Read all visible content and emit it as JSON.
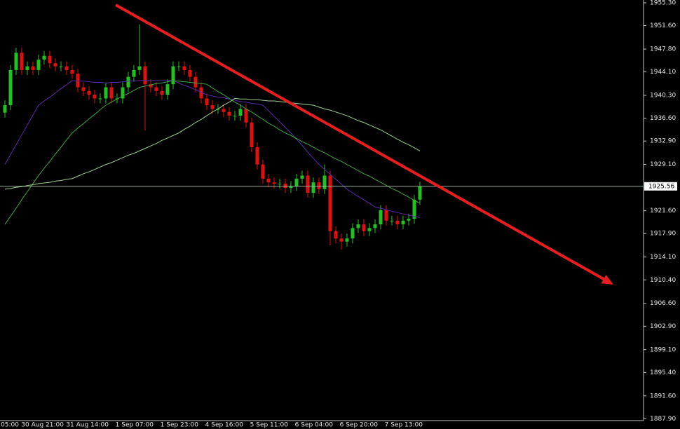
{
  "chart_data": {
    "type": "candlestick",
    "categories": [
      "05:00",
      null,
      null,
      null,
      null,
      null,
      null,
      null,
      "30 Aug 21:00",
      null,
      null,
      null,
      null,
      null,
      null,
      null,
      "31 Aug 14:00",
      null,
      null,
      null,
      null,
      null,
      null,
      null,
      "1 Sep 07:00",
      null,
      null,
      null,
      null,
      null,
      null,
      null,
      "1 Sep 23:00",
      null,
      null,
      null,
      null,
      null,
      null,
      null,
      "4 Sep 16:00",
      null,
      null,
      null,
      null,
      null,
      null,
      null,
      "5 Sep 11:00",
      null,
      null,
      null,
      null,
      null,
      null,
      null,
      "6 Sep 04:00",
      null,
      null,
      null,
      null,
      null,
      null,
      null,
      "6 Sep 20:00",
      null,
      null,
      null,
      null,
      null,
      null,
      null,
      "7 Sep 13:00",
      null,
      null
    ],
    "open": [
      1937.5,
      1938.7,
      1944.4,
      1947.2,
      1944.4,
      1945.0,
      1944.4,
      1946.1,
      1946.7,
      1945.5,
      1945.0,
      1945.0,
      1944.4,
      1943.8,
      1941.6,
      1941.0,
      1940.4,
      1939.8,
      1939.8,
      1941.6,
      1939.8,
      1939.8,
      1941.6,
      1943.3,
      1944.4,
      1945.0,
      1942.1,
      1941.6,
      1941.0,
      1940.4,
      1942.1,
      1945.0,
      1945.0,
      1944.4,
      1943.3,
      1941.6,
      1939.8,
      1938.7,
      1938.1,
      1938.1,
      1937.6,
      1937.0,
      1937.0,
      1938.1,
      1935.9,
      1931.9,
      1929.1,
      1926.8,
      1926.2,
      1926.0,
      1926.0,
      1925.3,
      1925.6,
      1926.8,
      1927.3,
      1924.5,
      1926.2,
      1925.1,
      1927.3,
      1918.3,
      1917.1,
      1916.6,
      1917.1,
      1918.8,
      1919.4,
      1918.3,
      1918.8,
      1919.4,
      1921.7,
      1920.0,
      1920.0,
      1919.4,
      1920.0,
      1920.3,
      1923.4
    ],
    "high": [
      1939.5,
      1945.2,
      1948.0,
      1948.0,
      1945.8,
      1945.8,
      1946.9,
      1947.5,
      1947.5,
      1946.3,
      1945.8,
      1945.8,
      1945.2,
      1944.6,
      1942.4,
      1941.8,
      1941.2,
      1940.6,
      1942.4,
      1942.4,
      1940.6,
      1942.4,
      1944.1,
      1945.2,
      1951.8,
      1945.8,
      1942.9,
      1942.4,
      1941.8,
      1942.9,
      1945.8,
      1945.8,
      1945.8,
      1945.2,
      1944.1,
      1942.4,
      1940.6,
      1939.5,
      1938.9,
      1938.9,
      1938.4,
      1937.8,
      1938.9,
      1938.9,
      1936.7,
      1932.7,
      1929.9,
      1927.6,
      1927.0,
      1926.8,
      1926.8,
      1926.4,
      1927.6,
      1928.1,
      1928.1,
      1927.0,
      1927.0,
      1929.1,
      1928.1,
      1919.1,
      1917.9,
      1917.9,
      1919.6,
      1920.2,
      1920.2,
      1919.6,
      1920.2,
      1922.5,
      1922.5,
      1920.8,
      1920.8,
      1920.8,
      1921.1,
      1924.2,
      1926.3
    ],
    "low": [
      1936.7,
      1937.9,
      1943.6,
      1943.6,
      1943.6,
      1943.6,
      1943.6,
      1945.3,
      1944.7,
      1944.2,
      1944.2,
      1943.6,
      1943.0,
      1940.8,
      1940.2,
      1939.6,
      1939.0,
      1939.0,
      1939.0,
      1939.0,
      1939.0,
      1939.0,
      1940.8,
      1942.5,
      1943.6,
      1934.6,
      1940.8,
      1940.2,
      1939.6,
      1939.6,
      1941.3,
      1944.2,
      1943.6,
      1942.5,
      1940.8,
      1939.0,
      1937.9,
      1937.3,
      1937.3,
      1936.8,
      1936.2,
      1936.2,
      1936.2,
      1935.1,
      1931.1,
      1928.3,
      1926.0,
      1925.4,
      1925.2,
      1925.2,
      1924.5,
      1924.5,
      1924.8,
      1926.0,
      1923.7,
      1923.7,
      1924.3,
      1924.3,
      1916.0,
      1916.3,
      1915.3,
      1915.8,
      1916.3,
      1918.0,
      1917.5,
      1917.5,
      1918.0,
      1918.6,
      1919.2,
      1919.2,
      1918.6,
      1918.6,
      1919.2,
      1919.5,
      1922.6
    ],
    "close": [
      1938.7,
      1944.4,
      1947.2,
      1944.4,
      1945.0,
      1944.4,
      1946.1,
      1946.7,
      1945.5,
      1945.0,
      1945.0,
      1944.4,
      1943.8,
      1941.6,
      1941.0,
      1940.4,
      1939.8,
      1939.8,
      1941.6,
      1939.8,
      1939.8,
      1941.6,
      1943.3,
      1944.4,
      1945.0,
      1942.1,
      1941.6,
      1941.0,
      1940.4,
      1942.1,
      1945.0,
      1945.0,
      1944.4,
      1943.3,
      1941.6,
      1939.8,
      1938.7,
      1938.1,
      1938.1,
      1937.6,
      1937.0,
      1937.0,
      1938.1,
      1935.9,
      1931.9,
      1929.1,
      1926.8,
      1926.2,
      1926.0,
      1926.0,
      1925.3,
      1925.6,
      1926.8,
      1927.3,
      1924.5,
      1926.2,
      1925.1,
      1927.3,
      1918.3,
      1917.1,
      1916.6,
      1917.1,
      1918.8,
      1919.4,
      1918.3,
      1918.8,
      1919.4,
      1921.7,
      1920.0,
      1920.0,
      1919.4,
      1920.0,
      1920.3,
      1923.4,
      1925.56
    ],
    "up_color": "#1fc21f",
    "down_color": "#e01010",
    "series": [
      {
        "color": "#5a2aa8",
        "values": [
          1929.1,
          1930.7,
          1932.3,
          1933.9,
          1935.5,
          1937.1,
          1938.7,
          1939.4,
          1940.0,
          1940.7,
          1941.4,
          1942.0,
          1942.7,
          1942.6,
          1942.6,
          1942.5,
          1942.4,
          1942.4,
          1942.3,
          1942.4,
          1942.4,
          1942.5,
          1942.6,
          1942.6,
          1942.7,
          1942.7,
          1942.7,
          1942.7,
          1942.7,
          1942.7,
          1942.7,
          1942.3,
          1941.9,
          1941.6,
          1941.2,
          1940.8,
          1940.4,
          1940.2,
          1940.0,
          1939.9,
          1939.7,
          1939.5,
          1939.3,
          1939.2,
          1939.0,
          1938.9,
          1938.7,
          1937.8,
          1936.9,
          1936.0,
          1935.1,
          1934.2,
          1933.2,
          1932.2,
          1931.1,
          1930.1,
          1929.1,
          1928.3,
          1927.5,
          1926.7,
          1925.9,
          1925.1,
          1924.5,
          1923.9,
          1923.4,
          1922.8,
          1922.2,
          1922.0,
          1921.8,
          1921.5,
          1921.3,
          1921.1,
          1920.9,
          1920.7,
          1920.5
        ]
      },
      {
        "color": "#3fa83f",
        "values": [
          1919.4,
          1920.7,
          1922.0,
          1923.4,
          1924.7,
          1926.0,
          1927.3,
          1928.5,
          1929.6,
          1930.8,
          1931.9,
          1933.1,
          1934.2,
          1935.0,
          1935.7,
          1936.5,
          1937.2,
          1938.0,
          1938.7,
          1939.2,
          1939.7,
          1940.2,
          1940.6,
          1941.1,
          1941.6,
          1941.8,
          1942.0,
          1942.2,
          1942.3,
          1942.5,
          1942.7,
          1942.6,
          1942.5,
          1942.4,
          1942.3,
          1942.2,
          1942.1,
          1941.5,
          1940.9,
          1940.4,
          1939.8,
          1939.2,
          1938.7,
          1938.1,
          1937.6,
          1937.0,
          1936.4,
          1935.8,
          1935.3,
          1934.7,
          1934.2,
          1933.8,
          1933.3,
          1932.8,
          1932.4,
          1931.9,
          1931.4,
          1931.0,
          1930.5,
          1930.0,
          1929.6,
          1929.1,
          1928.6,
          1928.1,
          1927.6,
          1927.2,
          1926.7,
          1926.2,
          1925.7,
          1925.2,
          1924.8,
          1924.3,
          1923.8,
          1923.3,
          1922.8
        ]
      },
      {
        "color": "#9fcf8f",
        "values": [
          1925.1,
          1925.2,
          1925.4,
          1925.5,
          1925.7,
          1925.8,
          1926.0,
          1926.1,
          1926.2,
          1926.4,
          1926.5,
          1926.7,
          1926.8,
          1927.2,
          1927.6,
          1927.9,
          1928.3,
          1928.7,
          1929.1,
          1929.4,
          1929.8,
          1930.2,
          1930.6,
          1930.9,
          1931.3,
          1931.7,
          1932.1,
          1932.5,
          1933.0,
          1933.4,
          1933.8,
          1934.2,
          1934.8,
          1935.3,
          1935.9,
          1936.4,
          1937.0,
          1937.6,
          1938.1,
          1938.7,
          1939.2,
          1939.8,
          1939.7,
          1939.7,
          1939.6,
          1939.6,
          1939.5,
          1939.4,
          1939.4,
          1939.3,
          1939.2,
          1939.1,
          1939.0,
          1938.9,
          1938.8,
          1938.7,
          1938.4,
          1938.1,
          1937.9,
          1937.6,
          1937.3,
          1937.0,
          1936.6,
          1936.2,
          1935.9,
          1935.5,
          1935.1,
          1934.7,
          1934.2,
          1933.7,
          1933.2,
          1932.7,
          1932.3,
          1931.8,
          1931.3
        ]
      }
    ],
    "ylim": [
      1887.6,
      1955.75
    ],
    "yticks": [
      {
        "value": 1955.3,
        "label": "1955.30"
      },
      {
        "value": 1951.6,
        "label": "1951.60"
      },
      {
        "value": 1947.8,
        "label": "1947.80"
      },
      {
        "value": 1944.1,
        "label": "1944.10"
      },
      {
        "value": 1940.3,
        "label": "1940.30"
      },
      {
        "value": 1936.6,
        "label": "1936.60"
      },
      {
        "value": 1932.9,
        "label": "1932.90"
      },
      {
        "value": 1929.1,
        "label": "1929.10"
      },
      {
        "value": 1921.6,
        "label": "1921.60"
      },
      {
        "value": 1917.9,
        "label": "1917.90"
      },
      {
        "value": 1914.1,
        "label": "1914.10"
      },
      {
        "value": 1910.4,
        "label": "1910.40"
      },
      {
        "value": 1906.6,
        "label": "1906.60"
      },
      {
        "value": 1902.9,
        "label": "1902.90"
      },
      {
        "value": 1899.1,
        "label": "1899.10"
      },
      {
        "value": 1895.4,
        "label": "1895.40"
      },
      {
        "value": 1891.6,
        "label": "1891.60"
      },
      {
        "value": 1887.9,
        "label": "1887.90"
      }
    ],
    "grid": false
  }
}
